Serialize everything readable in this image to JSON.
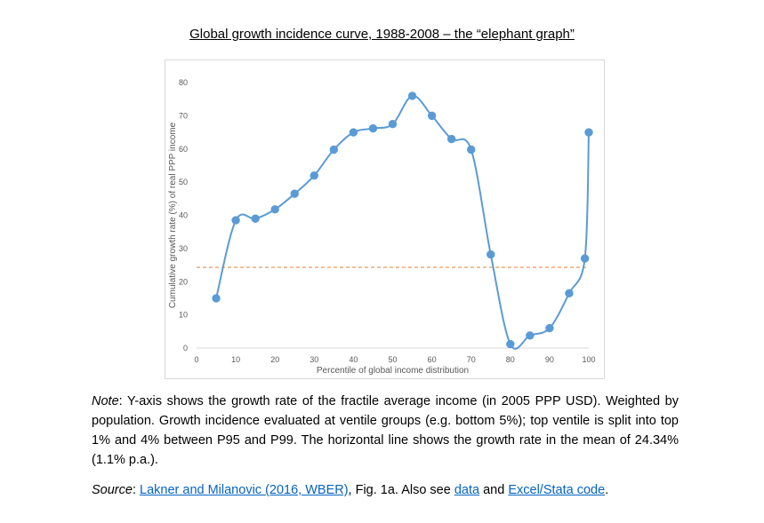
{
  "page": {
    "title": "Global growth incidence curve, 1988-2008 – the “elephant graph”"
  },
  "note": {
    "label": "Note",
    "text": ": Y-axis shows the growth rate of the fractile average income (in 2005 PPP USD). Weighted by population. Growth incidence evaluated at ventile groups (e.g. bottom 5%); top ventile is split into top 1% and 4% between P95 and P99. The horizontal line shows the growth rate in the mean of 24.34% (1.1% p.a.)."
  },
  "source": {
    "label": "Source",
    "sep1": ": ",
    "link1": "Lakner and Milanovic (2016, WBER)",
    "mid": ", Fig. 1a. Also see ",
    "link2": "data",
    "and": " and ",
    "link3": "Excel/Stata code",
    "end": "."
  },
  "chart_data": {
    "type": "line",
    "title": "",
    "xlabel": "Percentile of global income distribution",
    "ylabel": "Cumulative growth rate (%) of real PPP income",
    "xlim": [
      0,
      100
    ],
    "ylim": [
      0,
      80
    ],
    "xticks": [
      0,
      10,
      20,
      30,
      40,
      50,
      60,
      70,
      80,
      90,
      100
    ],
    "yticks": [
      0,
      10,
      20,
      30,
      40,
      50,
      60,
      70,
      80
    ],
    "grid": false,
    "series": [
      {
        "color": "#5b9bd5",
        "x": [
          5,
          10,
          15,
          20,
          25,
          30,
          35,
          40,
          45,
          50,
          55,
          60,
          65,
          70,
          75,
          80,
          85,
          90,
          95,
          99,
          100
        ],
        "y": [
          15,
          38.5,
          39,
          41.8,
          46.5,
          52,
          59.8,
          65,
          66.2,
          67.5,
          76,
          70,
          63,
          59.8,
          28.2,
          1.2,
          3.8,
          6,
          16.5,
          27,
          65
        ]
      }
    ],
    "reference_line": {
      "y": 24.34,
      "color": "#f4b183",
      "style": "dashed"
    }
  }
}
